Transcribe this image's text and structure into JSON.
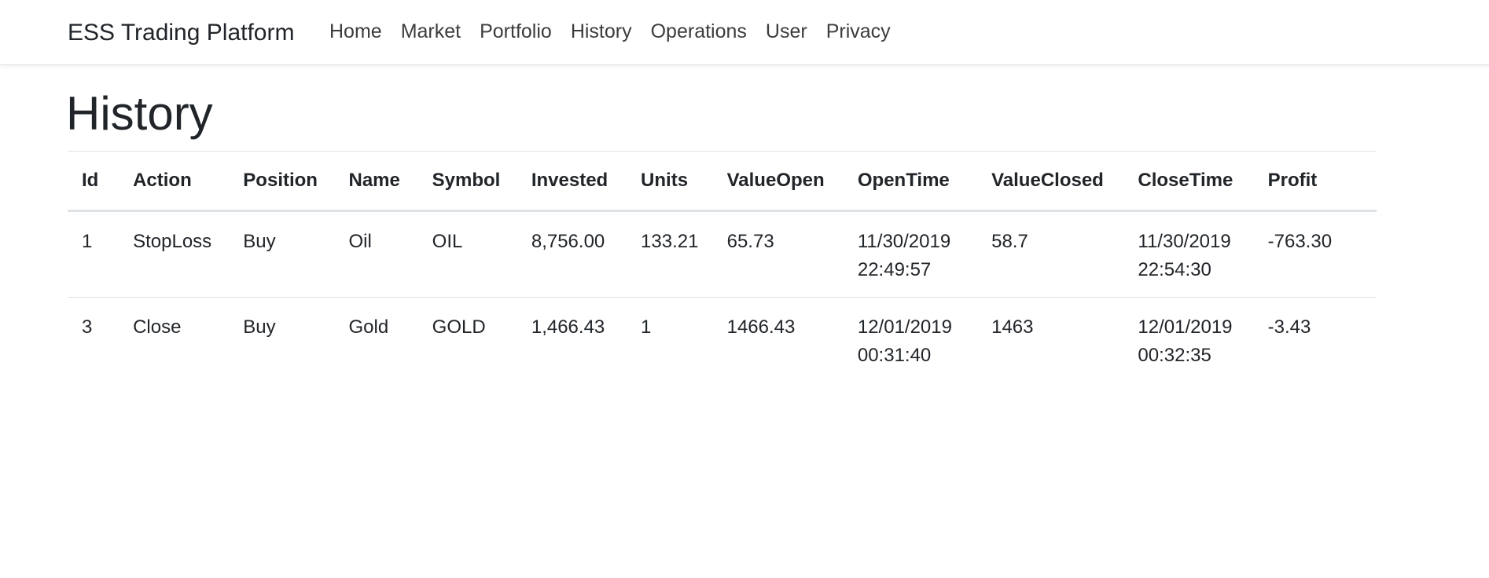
{
  "navbar": {
    "brand": "ESS Trading Platform",
    "links": [
      "Home",
      "Market",
      "Portfolio",
      "History",
      "Operations",
      "User",
      "Privacy"
    ]
  },
  "page": {
    "title": "History"
  },
  "table": {
    "headers": [
      "Id",
      "Action",
      "Position",
      "Name",
      "Symbol",
      "Invested",
      "Units",
      "ValueOpen",
      "OpenTime",
      "ValueClosed",
      "CloseTime",
      "Profit"
    ],
    "rows": [
      {
        "id": "1",
        "action": "StopLoss",
        "position": "Buy",
        "name": "Oil",
        "symbol": "OIL",
        "invested": "8,756.00",
        "units": "133.21",
        "value_open": "65.73",
        "open_time": "11/30/2019 22:49:57",
        "value_closed": "58.7",
        "close_time": "11/30/2019 22:54:30",
        "profit": "-763.30"
      },
      {
        "id": "3",
        "action": "Close",
        "position": "Buy",
        "name": "Gold",
        "symbol": "GOLD",
        "invested": "1,466.43",
        "units": "1",
        "value_open": "1466.43",
        "open_time": "12/01/2019 00:31:40",
        "value_closed": "1463",
        "close_time": "12/01/2019 00:32:35",
        "profit": "-3.43"
      }
    ]
  }
}
